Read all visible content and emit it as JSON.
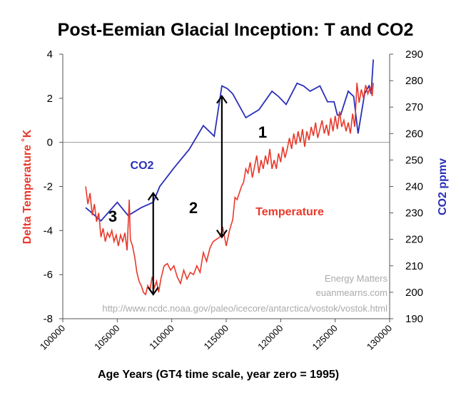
{
  "colors": {
    "temperature": "#e8392b",
    "co2": "#2a2fb8",
    "axis": "#555555",
    "grid": "#999999",
    "credit": "#aaaaaa"
  },
  "chart_data": {
    "type": "line",
    "title": "Post-Eemian Glacial Inception: T and CO2",
    "xlabel": "Age Years (GT4 time scale, year zero = 1995)",
    "ylabel_left": "Delta Temperature ˚K",
    "ylabel_right": "CO2 ppmv",
    "xlim": [
      100000,
      130000
    ],
    "ylim_left": [
      -8,
      4
    ],
    "ylim_right": [
      190,
      290
    ],
    "x_ticks": [
      100000,
      105000,
      110000,
      115000,
      120000,
      125000,
      130000
    ],
    "y_ticks_left": [
      -8,
      -6,
      -4,
      -2,
      0,
      2,
      4
    ],
    "y_ticks_right": [
      190,
      200,
      210,
      220,
      230,
      240,
      250,
      260,
      270,
      280,
      290
    ],
    "series": [
      {
        "name": "Temperature",
        "axis": "left",
        "x": [
          102100,
          102300,
          102500,
          102700,
          102900,
          103100,
          103300,
          103500,
          103700,
          103900,
          104100,
          104300,
          104500,
          104700,
          104900,
          105100,
          105300,
          105500,
          105700,
          105900,
          106100,
          106200,
          106400,
          106600,
          106800,
          107000,
          107200,
          107400,
          107600,
          107800,
          108000,
          108200,
          108400,
          108600,
          108800,
          109000,
          109300,
          109600,
          109900,
          110200,
          110500,
          110800,
          111100,
          111400,
          111700,
          112000,
          112300,
          112600,
          112900,
          113200,
          113500,
          113800,
          114100,
          114400,
          114700,
          115000,
          115300,
          115600,
          115800,
          116000,
          116200,
          116400,
          116600,
          116800,
          117000,
          117200,
          117400,
          117600,
          117800,
          118000,
          118200,
          118400,
          118600,
          118800,
          119000,
          119200,
          119400,
          119600,
          119800,
          120000,
          120200,
          120400,
          120600,
          120800,
          121000,
          121200,
          121400,
          121600,
          121800,
          122000,
          122200,
          122400,
          122600,
          122800,
          123000,
          123200,
          123400,
          123600,
          123800,
          124000,
          124200,
          124400,
          124600,
          124800,
          125000,
          125200,
          125400,
          125600,
          125800,
          126000,
          126200,
          126400,
          126600,
          126800,
          127000,
          127200,
          127400,
          127600,
          127800,
          128000,
          128200,
          128400,
          128500
        ],
        "values": [
          -2.0,
          -2.8,
          -2.3,
          -3.3,
          -2.8,
          -3.6,
          -3.2,
          -4.3,
          -3.9,
          -4.5,
          -4.1,
          -4.3,
          -4.0,
          -4.5,
          -4.2,
          -4.7,
          -4.2,
          -4.5,
          -4.1,
          -4.9,
          -2.6,
          -4.4,
          -4.7,
          -5.2,
          -5.9,
          -6.3,
          -6.5,
          -6.8,
          -6.9,
          -6.5,
          -6.7,
          -6.1,
          -6.6,
          -6.3,
          -6.8,
          -6.2,
          -5.6,
          -5.5,
          -5.8,
          -5.6,
          -6.1,
          -6.4,
          -5.8,
          -6.2,
          -5.9,
          -6.0,
          -5.6,
          -5.9,
          -5.0,
          -5.4,
          -4.8,
          -4.5,
          -4.4,
          -4.3,
          -3.9,
          -4.7,
          -4.0,
          -3.5,
          -2.5,
          -2.6,
          -2.3,
          -2.0,
          -1.8,
          -1.2,
          -1.4,
          -0.9,
          -1.6,
          -1.1,
          -0.6,
          -1.4,
          -0.8,
          -1.2,
          -0.6,
          -1.0,
          -0.3,
          -1.2,
          -0.8,
          -1.2,
          -0.5,
          -0.9,
          -0.2,
          -0.7,
          -0.3,
          0.2,
          -0.3,
          0.4,
          -0.1,
          0.5,
          0.0,
          0.6,
          -0.2,
          0.5,
          0.1,
          0.7,
          0.3,
          0.9,
          0.2,
          0.6,
          1.0,
          0.4,
          0.8,
          0.3,
          1.1,
          0.5,
          1.2,
          0.6,
          1.4,
          0.7,
          1.0,
          0.5,
          0.9,
          0.4,
          1.3,
          0.7,
          2.7,
          1.8,
          2.4,
          2.0,
          2.6,
          2.2,
          2.5,
          2.1,
          2.7
        ]
      },
      {
        "name": "CO2",
        "axis": "right",
        "x": [
          102100,
          103500,
          105000,
          106000,
          107200,
          108300,
          108900,
          110200,
          111600,
          112900,
          113900,
          114600,
          115100,
          115600,
          116800,
          118000,
          119200,
          119800,
          120500,
          121500,
          122100,
          122700,
          123600,
          124300,
          124900,
          125200,
          125500,
          126200,
          126700,
          127100,
          127700,
          128100,
          128300,
          128500
        ],
        "values": [
          232,
          227,
          234,
          229,
          232,
          234,
          240,
          247,
          254,
          263,
          259,
          278,
          277,
          275,
          266,
          269,
          276,
          274,
          271,
          279,
          278,
          276,
          278,
          272,
          272,
          267,
          267,
          276,
          274,
          260,
          275,
          278,
          275,
          288
        ]
      }
    ],
    "series_labels": {
      "temperature": "Temperature",
      "co2": "CO2"
    },
    "annotations": {
      "numbers": [
        "1",
        "2",
        "3"
      ],
      "arrows": [
        {
          "x": 108300,
          "from": -6.9,
          "to": -2.3
        },
        {
          "x": 114600,
          "from": -4.3,
          "to": 2.1
        }
      ]
    },
    "credits": [
      "Energy Matters",
      "euanmearns.com",
      "http://www.ncdc.noaa.gov/paleo/icecore/antarctica/vostok/vostok.html"
    ]
  }
}
